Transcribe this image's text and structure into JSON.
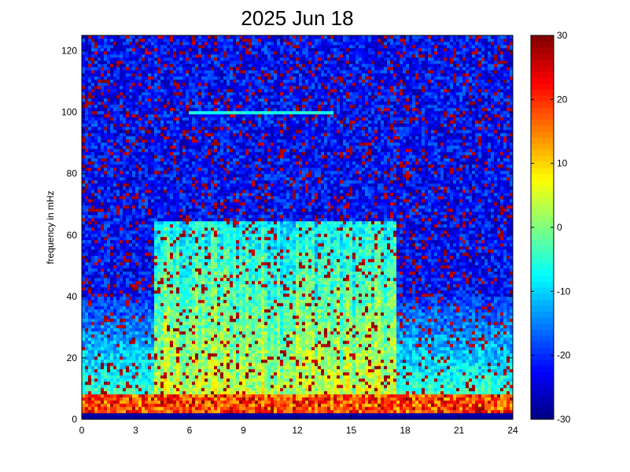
{
  "chart_data": {
    "type": "heatmap",
    "title": "2025 Jun 18",
    "xlabel": "",
    "ylabel": "frequency in mHz",
    "xlim": [
      0,
      24
    ],
    "ylim": [
      0,
      125
    ],
    "x_ticks": [
      0,
      3,
      6,
      9,
      12,
      15,
      18,
      21,
      24
    ],
    "y_ticks": [
      0,
      20,
      40,
      60,
      80,
      100,
      120
    ],
    "colorbar": {
      "range": [
        -30,
        30
      ],
      "ticks": [
        -30,
        -20,
        -10,
        0,
        10,
        20,
        30
      ],
      "colormap": "jet"
    },
    "description_of_values": {
      "background_level": -22,
      "low_frequency_band": {
        "y_range": [
          0,
          8
        ],
        "level": 20
      },
      "daytime_activity": {
        "x_range": [
          4,
          17.5
        ],
        "y_range": [
          0,
          65
        ],
        "level": 0
      },
      "narrowband_line": {
        "x_range": [
          6,
          14
        ],
        "y": 100,
        "level": -8
      }
    }
  },
  "colors": {
    "jet_stops": [
      "#00008f",
      "#0000ff",
      "#00ffff",
      "#ffff00",
      "#ff0000",
      "#800000"
    ]
  }
}
